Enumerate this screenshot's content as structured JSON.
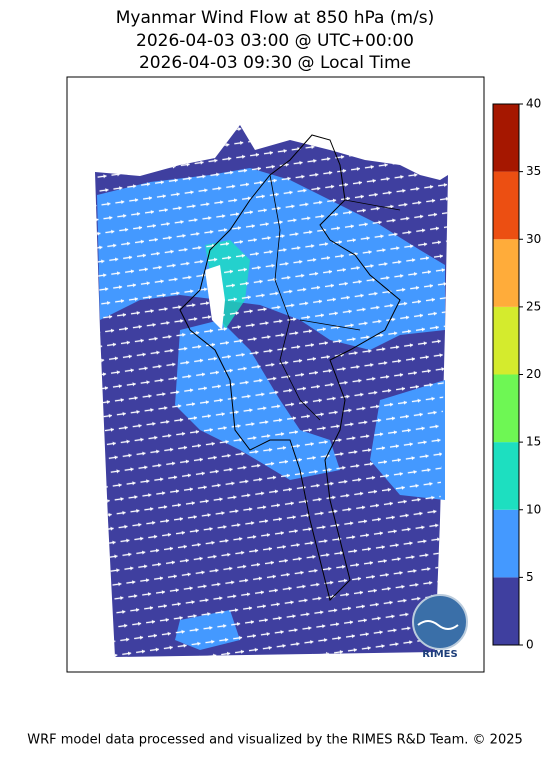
{
  "title": [
    "Myanmar Wind Flow at 850 hPa (m/s)",
    "2026-04-03 03:00 @ UTC+00:00",
    "2026-04-03 09:30 @ Local Time"
  ],
  "colorbar": {
    "lim": [
      0,
      40
    ],
    "ticks": [
      0,
      5,
      10,
      15,
      20,
      25,
      30,
      35,
      40
    ],
    "colors": [
      "#3f3f9f",
      "#4499ff",
      "#1ddfc0",
      "#6ef754",
      "#d4eb2d",
      "#ffac3a",
      "#ec4f12",
      "#a51700"
    ]
  },
  "logo": "RIMES",
  "footer": "WRF model data processed and visualized by the RIMES R&D Team. © 2025"
}
